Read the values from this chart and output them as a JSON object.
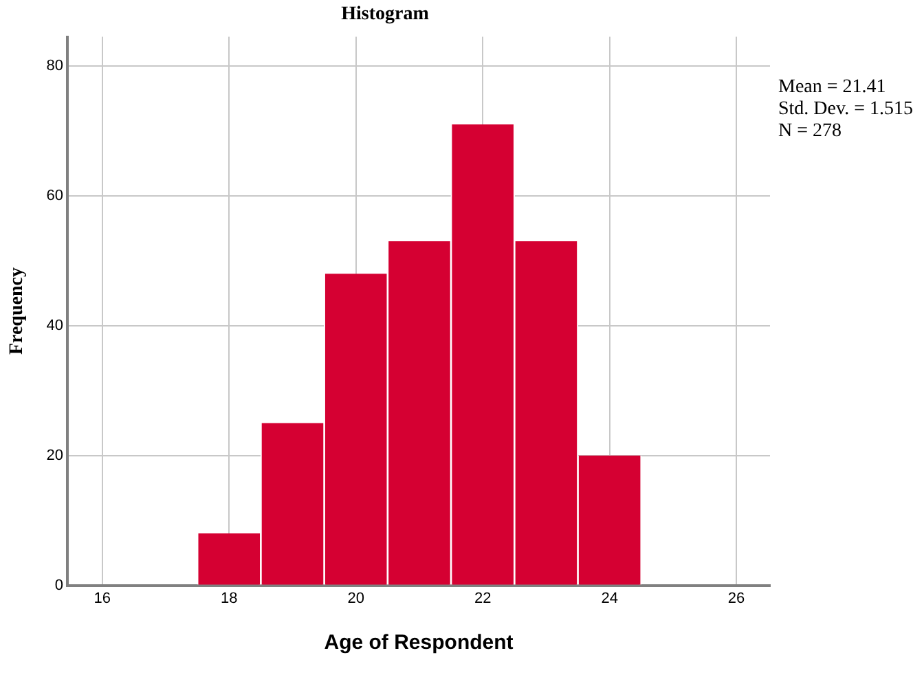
{
  "chart_data": {
    "type": "histogram",
    "title": "Histogram",
    "xlabel": "Age of Respondent",
    "ylabel": "Frequency",
    "bins": [
      17.5,
      18.5,
      19.5,
      20.5,
      21.5,
      22.5,
      23.5,
      24.5
    ],
    "values": [
      8,
      25,
      48,
      53,
      71,
      53,
      20
    ],
    "color": "#d50032",
    "xlim": [
      15.45,
      26.53
    ],
    "xticks": [
      16,
      18,
      20,
      22,
      24,
      26
    ],
    "ylim": [
      0,
      84.5
    ],
    "yticks": [
      0,
      20,
      40,
      60,
      80
    ],
    "grid": true,
    "legend": false,
    "annotations": [
      "Mean = 21.41",
      "Std. Dev. = 1.515",
      "N = 278"
    ]
  }
}
